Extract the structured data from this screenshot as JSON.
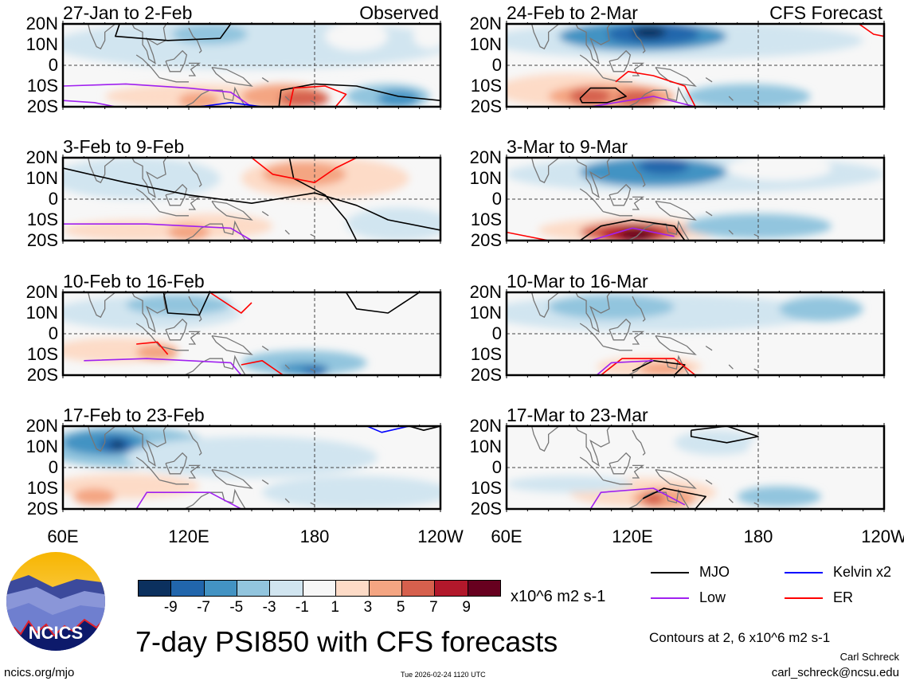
{
  "domain": {
    "lon_range": [
      60,
      240
    ],
    "lat_range": [
      -20,
      20
    ]
  },
  "colors": {
    "levels": [
      -9,
      -7,
      -5,
      -3,
      -1,
      1,
      3,
      5,
      7,
      9
    ],
    "fill": [
      "#0b305e",
      "#2166ac",
      "#4393c3",
      "#92c5de",
      "#d1e5f0",
      "#f7f7f7",
      "#fddbc7",
      "#f4a582",
      "#d6604d",
      "#b2182b",
      "#67001f"
    ],
    "MJO": "#000000",
    "Low": "#a020f0",
    "Kelvin": "#0000ff",
    "ER": "#ff0000",
    "coast": "#777777"
  },
  "lat_labels": [
    "20N",
    "10N",
    "0",
    "10S",
    "20S"
  ],
  "lon_labels": [
    "60E",
    "120E",
    "180",
    "120W"
  ],
  "panels": [
    {
      "title": "27-Jan to 2-Feb",
      "tag": "Observed",
      "col": 0,
      "row": 0,
      "blobs": [
        [
          150,
          10,
          95,
          12,
          -1
        ],
        [
          130,
          15,
          18,
          5,
          -3
        ],
        [
          200,
          14,
          15,
          7,
          1
        ],
        [
          235,
          14,
          8,
          6,
          1
        ],
        [
          125,
          -15,
          45,
          6,
          3
        ],
        [
          165,
          -15,
          20,
          6,
          5
        ],
        [
          125,
          -17,
          10,
          4,
          5
        ],
        [
          175,
          -16,
          12,
          4,
          7
        ],
        [
          215,
          -15,
          20,
          6,
          -3
        ],
        [
          220,
          -16,
          10,
          4,
          -5
        ]
      ],
      "contours": [
        {
          "type": "MJO",
          "pts": [
            [
              87,
              20
            ],
            [
              85,
              14
            ],
            [
              110,
              12
            ],
            [
              135,
              13
            ],
            [
              140,
              20
            ]
          ]
        },
        {
          "type": "MJO",
          "pts": [
            [
              163,
              -20
            ],
            [
              164,
              -12
            ],
            [
              180,
              -9
            ],
            [
              200,
              -10
            ],
            [
              220,
              -15
            ],
            [
              240,
              -17
            ]
          ]
        },
        {
          "type": "ER",
          "pts": [
            [
              168,
              -20
            ],
            [
              170,
              -11
            ],
            [
              185,
              -10
            ],
            [
              195,
              -14
            ],
            [
              190,
              -20
            ]
          ]
        },
        {
          "type": "Low",
          "pts": [
            [
              60,
              -10
            ],
            [
              90,
              -9
            ],
            [
              120,
              -11
            ],
            [
              140,
              -13
            ],
            [
              150,
              -20
            ]
          ]
        },
        {
          "type": "Low",
          "pts": [
            [
              60,
              -17
            ],
            [
              75,
              -18
            ],
            [
              85,
              -20
            ]
          ]
        },
        {
          "type": "Kelvin",
          "pts": [
            [
              125,
              -20
            ],
            [
              140,
              -18
            ],
            [
              155,
              -20
            ]
          ]
        }
      ]
    },
    {
      "title": "24-Feb to 2-Mar",
      "tag": "CFS Forecast",
      "col": 1,
      "row": 0,
      "blobs": [
        [
          140,
          12,
          90,
          9,
          -1
        ],
        [
          125,
          14,
          40,
          7,
          -5
        ],
        [
          130,
          15,
          22,
          5,
          -7
        ],
        [
          128,
          16,
          8,
          3,
          -9
        ],
        [
          90,
          -12,
          35,
          8,
          3
        ],
        [
          110,
          -15,
          30,
          6,
          5
        ],
        [
          100,
          -15,
          10,
          4,
          7
        ],
        [
          122,
          -16,
          10,
          4,
          7
        ],
        [
          175,
          -15,
          30,
          6,
          -3
        ],
        [
          230,
          -14,
          15,
          6,
          1
        ]
      ],
      "contours": [
        {
          "type": "MJO",
          "pts": [
            [
              95,
              -16
            ],
            [
              100,
              -11
            ],
            [
              112,
              -11
            ],
            [
              117,
              -15
            ],
            [
              108,
              -18
            ],
            [
              96,
              -18
            ],
            [
              95,
              -16
            ]
          ]
        },
        {
          "type": "ER",
          "pts": [
            [
              112,
              -8
            ],
            [
              118,
              -3
            ],
            [
              130,
              -5
            ],
            [
              145,
              -10
            ],
            [
              150,
              -20
            ]
          ]
        },
        {
          "type": "ER",
          "pts": [
            [
              228,
              20
            ],
            [
              235,
              15
            ],
            [
              240,
              14
            ]
          ]
        },
        {
          "type": "Low",
          "pts": [
            [
              100,
              -20
            ],
            [
              130,
              -15
            ],
            [
              150,
              -20
            ]
          ]
        }
      ]
    },
    {
      "title": "3-Feb to 9-Feb",
      "tag": "",
      "col": 0,
      "row": 1,
      "blobs": [
        [
          95,
          10,
          40,
          10,
          -1
        ],
        [
          185,
          10,
          40,
          10,
          3
        ],
        [
          175,
          12,
          20,
          6,
          5
        ],
        [
          95,
          -15,
          35,
          5,
          3
        ],
        [
          130,
          -13,
          30,
          6,
          3
        ],
        [
          120,
          -16,
          10,
          4,
          5
        ],
        [
          220,
          -12,
          25,
          8,
          -1
        ]
      ],
      "contours": [
        {
          "type": "MJO",
          "pts": [
            [
              60,
              15
            ],
            [
              90,
              8
            ],
            [
              120,
              2
            ],
            [
              150,
              -2
            ],
            [
              180,
              3
            ],
            [
              200,
              -3
            ],
            [
              215,
              -10
            ],
            [
              240,
              -15
            ]
          ]
        },
        {
          "type": "MJO",
          "pts": [
            [
              168,
              20
            ],
            [
              170,
              10
            ],
            [
              185,
              2
            ],
            [
              195,
              -10
            ],
            [
              200,
              -20
            ]
          ]
        },
        {
          "type": "ER",
          "pts": [
            [
              150,
              20
            ],
            [
              160,
              12
            ],
            [
              180,
              8
            ],
            [
              190,
              15
            ],
            [
              200,
              20
            ]
          ]
        },
        {
          "type": "Low",
          "pts": [
            [
              60,
              -12
            ],
            [
              100,
              -12
            ],
            [
              140,
              -14
            ],
            [
              150,
              -20
            ]
          ]
        }
      ]
    },
    {
      "title": "3-Mar to 9-Mar",
      "tag": "",
      "col": 1,
      "row": 1,
      "blobs": [
        [
          150,
          12,
          90,
          9,
          -1
        ],
        [
          130,
          13,
          35,
          7,
          -5
        ],
        [
          135,
          16,
          12,
          4,
          -7
        ],
        [
          190,
          15,
          25,
          6,
          1
        ],
        [
          120,
          -15,
          45,
          6,
          3
        ],
        [
          120,
          -16,
          25,
          5,
          7
        ],
        [
          120,
          -17,
          15,
          4,
          9
        ],
        [
          122,
          -17,
          8,
          3,
          10
        ],
        [
          180,
          -13,
          35,
          6,
          -3
        ]
      ],
      "contours": [
        {
          "type": "MJO",
          "pts": [
            [
              95,
              -20
            ],
            [
              105,
              -13
            ],
            [
              120,
              -10
            ],
            [
              140,
              -13
            ],
            [
              145,
              -20
            ]
          ]
        },
        {
          "type": "ER",
          "pts": [
            [
              60,
              -16
            ],
            [
              80,
              -20
            ]
          ]
        },
        {
          "type": "Low",
          "pts": [
            [
              100,
              -20
            ],
            [
              120,
              -14
            ],
            [
              140,
              -18
            ]
          ]
        }
      ]
    },
    {
      "title": "10-Feb to 16-Feb",
      "tag": "",
      "col": 0,
      "row": 2,
      "blobs": [
        [
          100,
          10,
          45,
          8,
          -1
        ],
        [
          115,
          14,
          25,
          5,
          -3
        ],
        [
          200,
          12,
          30,
          7,
          1
        ],
        [
          85,
          -8,
          30,
          6,
          3
        ],
        [
          105,
          -9,
          10,
          4,
          5
        ],
        [
          175,
          -14,
          30,
          6,
          -3
        ],
        [
          175,
          -17,
          12,
          3,
          -5
        ],
        [
          180,
          -18,
          6,
          2,
          -7
        ]
      ],
      "contours": [
        {
          "type": "MJO",
          "pts": [
            [
              108,
              20
            ],
            [
              110,
              10
            ],
            [
              125,
              9
            ],
            [
              130,
              20
            ]
          ]
        },
        {
          "type": "MJO",
          "pts": [
            [
              195,
              20
            ],
            [
              200,
              12
            ],
            [
              215,
              10
            ],
            [
              230,
              20
            ]
          ]
        },
        {
          "type": "ER",
          "pts": [
            [
              130,
              20
            ],
            [
              145,
              10
            ],
            [
              150,
              15
            ]
          ]
        },
        {
          "type": "ER",
          "pts": [
            [
              95,
              -5
            ],
            [
              105,
              -4
            ],
            [
              110,
              -10
            ]
          ]
        },
        {
          "type": "ER",
          "pts": [
            [
              145,
              -15
            ],
            [
              155,
              -13
            ],
            [
              165,
              -20
            ]
          ]
        },
        {
          "type": "Low",
          "pts": [
            [
              70,
              -13
            ],
            [
              100,
              -12
            ],
            [
              140,
              -14
            ],
            [
              145,
              -20
            ]
          ]
        }
      ]
    },
    {
      "title": "10-Mar to 16-Mar",
      "tag": "",
      "col": 1,
      "row": 2,
      "blobs": [
        [
          130,
          10,
          80,
          9,
          -1
        ],
        [
          110,
          13,
          30,
          6,
          -3
        ],
        [
          210,
          12,
          20,
          6,
          -3
        ],
        [
          128,
          -16,
          25,
          5,
          3
        ],
        [
          135,
          -17,
          12,
          3,
          5
        ]
      ],
      "contours": [
        {
          "type": "MJO",
          "pts": [
            [
              120,
              -18
            ],
            [
              130,
              -13
            ],
            [
              145,
              -15
            ],
            [
              140,
              -20
            ]
          ]
        },
        {
          "type": "ER",
          "pts": [
            [
              105,
              -20
            ],
            [
              115,
              -12
            ],
            [
              140,
              -12
            ],
            [
              150,
              -20
            ]
          ]
        },
        {
          "type": "Low",
          "pts": [
            [
              103,
              -20
            ],
            [
              110,
              -14
            ],
            [
              130,
              -13
            ]
          ]
        }
      ]
    },
    {
      "title": "17-Feb to 23-Feb",
      "tag": "",
      "col": 0,
      "row": 3,
      "blobs": [
        [
          90,
          10,
          40,
          10,
          -3
        ],
        [
          80,
          12,
          20,
          6,
          -5
        ],
        [
          85,
          11,
          8,
          4,
          -7
        ],
        [
          86,
          11,
          3,
          2,
          -9
        ],
        [
          150,
          5,
          60,
          10,
          -1
        ],
        [
          90,
          -9,
          35,
          6,
          3
        ],
        [
          75,
          -14,
          10,
          4,
          5
        ],
        [
          200,
          -12,
          45,
          8,
          -1
        ]
      ],
      "contours": [
        {
          "type": "Kelvin",
          "pts": [
            [
              205,
              20
            ],
            [
              212,
              17
            ],
            [
              225,
              20
            ]
          ]
        },
        {
          "type": "MJO",
          "pts": [
            [
              225,
              20
            ],
            [
              232,
              18
            ],
            [
              240,
              20
            ]
          ]
        },
        {
          "type": "Low",
          "pts": [
            [
              95,
              -20
            ],
            [
              100,
              -12
            ],
            [
              130,
              -12
            ],
            [
              145,
              -20
            ]
          ]
        }
      ]
    },
    {
      "title": "17-Mar to 23-Mar",
      "tag": "",
      "col": 1,
      "row": 3,
      "blobs": [
        [
          100,
          10,
          45,
          8,
          1
        ],
        [
          160,
          12,
          20,
          6,
          -1
        ],
        [
          200,
          10,
          25,
          6,
          1
        ],
        [
          125,
          -12,
          35,
          7,
          3
        ],
        [
          135,
          -15,
          15,
          5,
          5
        ],
        [
          130,
          -15,
          5,
          3,
          7
        ],
        [
          190,
          -14,
          20,
          5,
          -3
        ],
        [
          90,
          -8,
          30,
          4,
          -1
        ]
      ],
      "contours": [
        {
          "type": "MJO",
          "pts": [
            [
              148,
              18
            ],
            [
              165,
              20
            ],
            [
              180,
              15
            ],
            [
              165,
              12
            ],
            [
              148,
              15
            ],
            [
              148,
              18
            ]
          ]
        },
        {
          "type": "MJO",
          "pts": [
            [
              125,
              -15
            ],
            [
              135,
              -10
            ],
            [
              155,
              -14
            ],
            [
              150,
              -20
            ]
          ]
        },
        {
          "type": "Low",
          "pts": [
            [
              100,
              -20
            ],
            [
              105,
              -12
            ],
            [
              130,
              -10
            ],
            [
              145,
              -18
            ]
          ]
        }
      ]
    }
  ],
  "colorbar": {
    "labels": [
      "-9",
      "-7",
      "-5",
      "-3",
      "-1",
      "1",
      "3",
      "5",
      "7",
      "9"
    ],
    "units": "x10^6 m2 s-1"
  },
  "legend": [
    {
      "key": "MJO",
      "label": "MJO"
    },
    {
      "key": "Kelvin",
      "label": "Kelvin x2"
    },
    {
      "key": "Low",
      "label": "Low"
    },
    {
      "key": "ER",
      "label": "ER"
    }
  ],
  "title": "7-day PSI850 with CFS forecasts",
  "contour_note": "Contours at 2, 6 x10^6 m2 s-1",
  "author": "Carl Schreck",
  "email": "carl_schreck@ncsu.edu",
  "url": "ncics.org/mjo",
  "timestamp": "Tue 2026-02-24 1120 UTC",
  "logo_text": "NCICS"
}
